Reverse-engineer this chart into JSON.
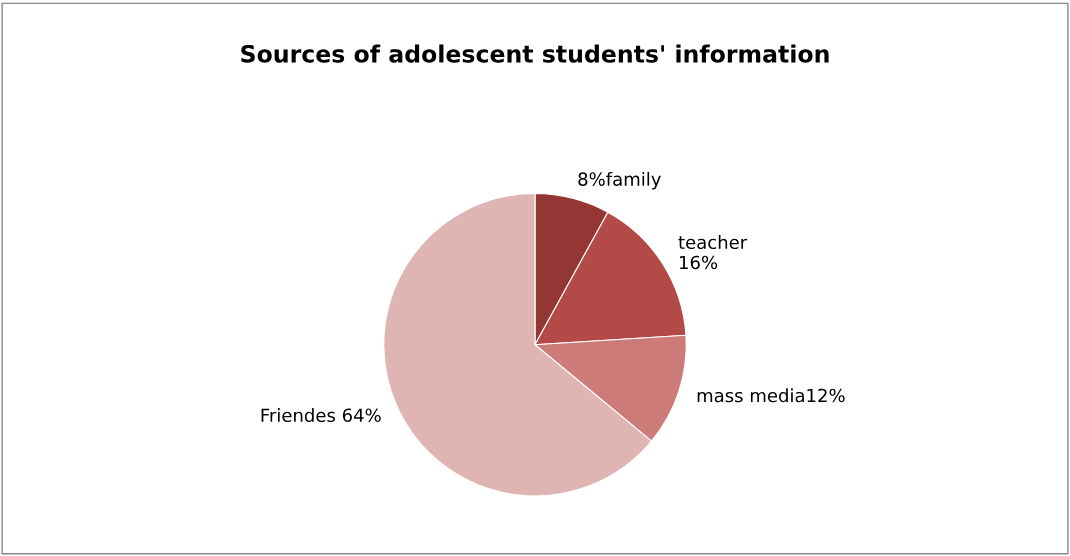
{
  "chart_data": {
    "type": "pie",
    "title": "Sources of adolescent students' information",
    "categories": [
      "8%family",
      "teacher\n16%",
      "mass media12%",
      "Friendes 64%"
    ],
    "values": [
      8,
      16,
      12,
      64
    ],
    "colors": [
      "#943634",
      "#b34a48",
      "#cc7b78",
      "#dfb5b4"
    ],
    "legend": false
  }
}
